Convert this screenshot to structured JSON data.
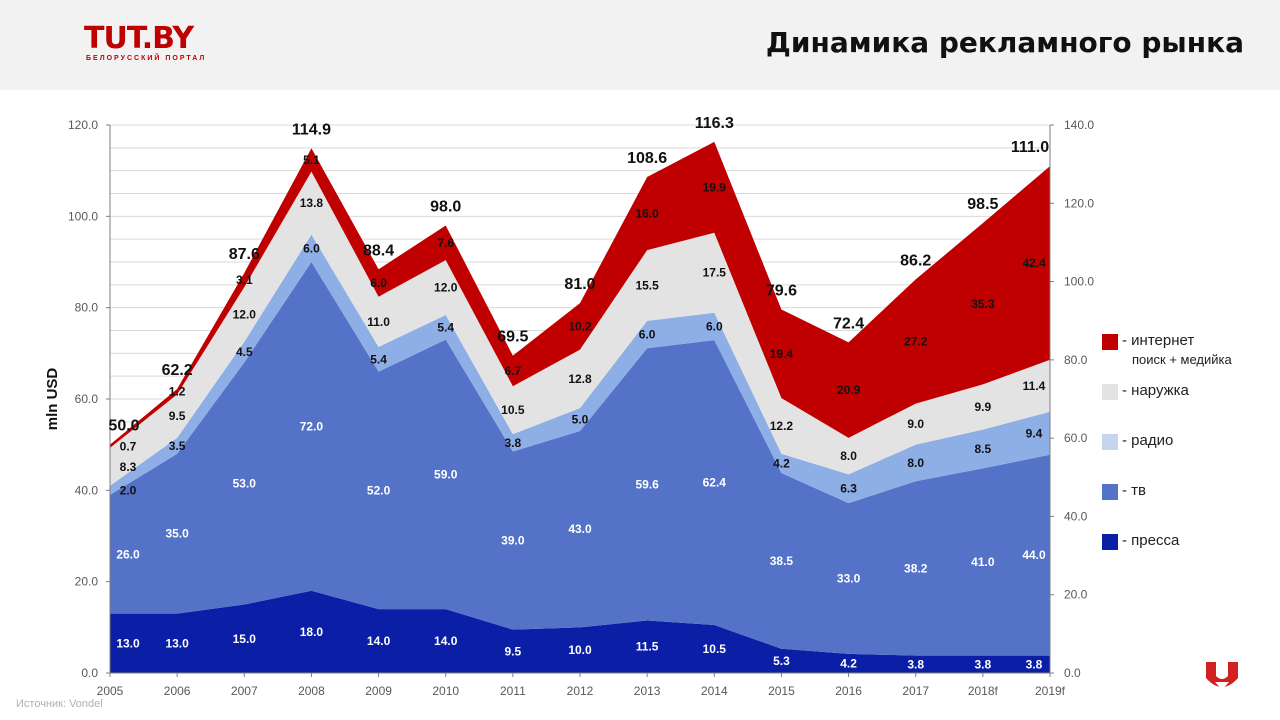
{
  "header": {
    "logo_text_t": "T",
    "logo_text_u": "U",
    "logo_text_rest": "T.BY",
    "logo_subtitle": "БЕЛОРУССКИЙ ПОРТАЛ",
    "title": "Динамика рекламного рынка"
  },
  "colors": {
    "press": "#0a1fa6",
    "tv": "#5473c8",
    "radio": "#8eaee6",
    "outdoor": "#e3e3e3",
    "internet": "#c00000",
    "brand_red": "#d21f1f",
    "brand_blue": "#1f2f7a"
  },
  "chart_data": {
    "type": "area",
    "stacked": true,
    "categories": [
      "2005",
      "2006",
      "2007",
      "2008",
      "2009",
      "2010",
      "2011",
      "2012",
      "2013",
      "2014",
      "2015",
      "2016",
      "2017",
      "2018f",
      "2019f"
    ],
    "series": [
      {
        "name": "- пресса",
        "values": [
          13.0,
          13.0,
          15.0,
          18.0,
          14.0,
          14.0,
          9.5,
          10.0,
          11.5,
          10.5,
          5.3,
          4.2,
          3.8,
          3.8,
          3.8
        ]
      },
      {
        "name": "- тв",
        "values": [
          26.0,
          35.0,
          53.0,
          72.0,
          52.0,
          59.0,
          39.0,
          43.0,
          59.6,
          62.4,
          38.5,
          33.0,
          38.2,
          41.0,
          44.0
        ]
      },
      {
        "name": "- радио",
        "values": [
          2.0,
          3.5,
          4.5,
          6.0,
          5.4,
          5.4,
          3.8,
          5.0,
          6.0,
          6.0,
          4.2,
          6.3,
          8.0,
          8.5,
          9.4
        ]
      },
      {
        "name": "- наружка",
        "values": [
          8.3,
          9.5,
          12.0,
          13.8,
          11.0,
          12.0,
          10.5,
          12.8,
          15.5,
          17.5,
          12.2,
          8.0,
          9.0,
          9.9,
          11.4
        ]
      },
      {
        "name": "- интернет",
        "subtitle": "поиск + медийка",
        "values": [
          0.7,
          1.2,
          3.1,
          5.1,
          6.0,
          7.6,
          6.7,
          10.2,
          16.0,
          19.9,
          19.4,
          20.9,
          27.2,
          35.3,
          42.4
        ]
      }
    ],
    "totals": [
      50.0,
      62.2,
      87.6,
      114.9,
      88.4,
      98.0,
      69.5,
      81.0,
      108.6,
      116.3,
      79.6,
      72.4,
      86.2,
      98.5,
      111.0
    ],
    "ylabel": "mln USD",
    "ylim": [
      0,
      120
    ],
    "y_ticks": [
      "0.0",
      "20.0",
      "40.0",
      "60.0",
      "80.0",
      "100.0",
      "120.0"
    ],
    "y2lim": [
      0,
      140
    ],
    "y2_ticks": [
      "0.0",
      "20.0",
      "40.0",
      "60.0",
      "80.0",
      "100.0",
      "120.0",
      "140.0"
    ],
    "grid": true,
    "legend_position": "right"
  },
  "source": "Источник: Vondel"
}
